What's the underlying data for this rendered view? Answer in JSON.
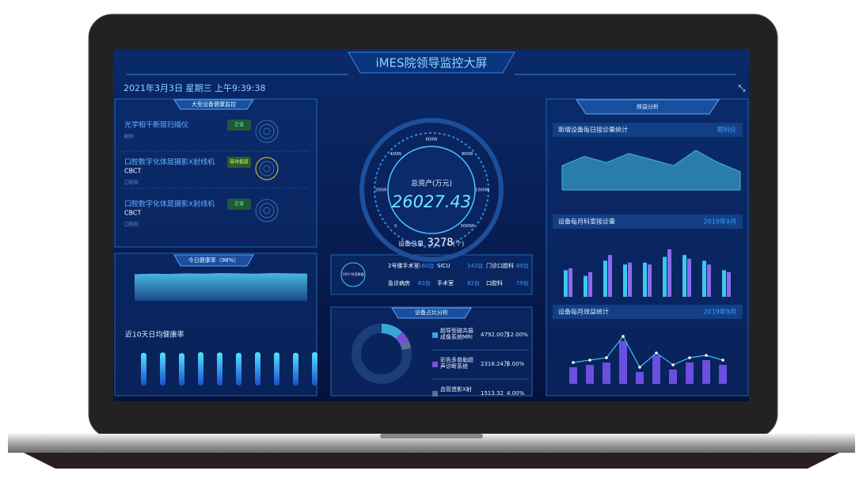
{
  "header": {
    "title": "iMES院领导监控大屏",
    "datetime": "2021年3月3日 星期三 上午9:39:38"
  },
  "devices_panel": {
    "title": "大型设备健康监控",
    "items": [
      {
        "name": "光学相干断层扫描仪",
        "status": "正常",
        "dept": "眼科"
      },
      {
        "name": "口腔数字化体层摄影X射线机",
        "model": "CBCT",
        "status": "等待报废",
        "dept": "口腔科"
      },
      {
        "name": "口腔数字化体层摄影X射线机",
        "model": "CBCT",
        "status": "正常",
        "dept": "口腔科"
      }
    ]
  },
  "health_panel": {
    "title": "今日健康率（98%）",
    "area_values": [
      90,
      92,
      91,
      93,
      92,
      94,
      93,
      92,
      94,
      93,
      92
    ],
    "subtitle": "近10天日均健康率",
    "bar_values": [
      96,
      97,
      95,
      98,
      97,
      96,
      98,
      97,
      96,
      98
    ]
  },
  "assets": {
    "label": "总资产(万元)",
    "value": "26027.43",
    "gauge_ticks": [
      "0",
      "200W",
      "400W",
      "600W",
      "800W",
      "1000W",
      "3000W"
    ],
    "count_label": "设备总量",
    "count": 3278,
    "count_unit": "(个)"
  },
  "departments": {
    "badge": "100个科室数据",
    "rows": [
      [
        {
          "name": "2号楼手术室",
          "count": "160台"
        },
        {
          "name": "SICU",
          "count": "143台"
        },
        {
          "name": "门诊口腔科",
          "count": "89台"
        }
      ],
      [
        {
          "name": "急诊病房",
          "count": "83台"
        },
        {
          "name": "手术室",
          "count": "82台"
        },
        {
          "name": "口腔科",
          "count": "79台"
        }
      ]
    ]
  },
  "share_panel": {
    "title": "设备占比分析",
    "items": [
      {
        "name": "超导型磁共振成像系统MRI",
        "amount": "4792.00万",
        "percent": {
          "value": 12,
          "label": "12.00%"
        },
        "color": "#3aa6d8"
      },
      {
        "name": "彩色多普勒超声诊断系统",
        "amount": "2318.24万",
        "percent": {
          "value": 6,
          "label": "6.00%"
        },
        "color": "#7a4fd6"
      },
      {
        "name": "血管造影X射",
        "amount": "1513.32",
        "percent": {
          "value": 4,
          "label": "4.00%"
        },
        "color": "#5d6f9a"
      }
    ]
  },
  "benefit": {
    "title": "效益分析",
    "daily": {
      "title": "新增设备每日接诊量统计",
      "tag": "眼科仪",
      "values": [
        40,
        55,
        45,
        60,
        50,
        40,
        65,
        45,
        30
      ],
      "color": "#3fb6d6"
    },
    "monthly": {
      "title": "设备每月科室接诊量",
      "tag": "2019年9月",
      "series": [
        {
          "color": "#39c9f0",
          "values": [
            28,
            22,
            38,
            34,
            36,
            42,
            44,
            38,
            28
          ]
        },
        {
          "color": "#8a6cf0",
          "values": [
            30,
            26,
            44,
            36,
            34,
            50,
            40,
            34,
            26
          ]
        }
      ]
    },
    "benefit": {
      "title": "设备每月效益统计",
      "tag": "2019年9月",
      "bars": [
        14,
        16,
        18,
        36,
        10,
        24,
        12,
        18,
        20,
        16
      ],
      "line": [
        18,
        20,
        22,
        40,
        14,
        26,
        16,
        22,
        24,
        20
      ],
      "bar_color": "#6a4fe0",
      "line_color": "#3fc0ff"
    }
  }
}
